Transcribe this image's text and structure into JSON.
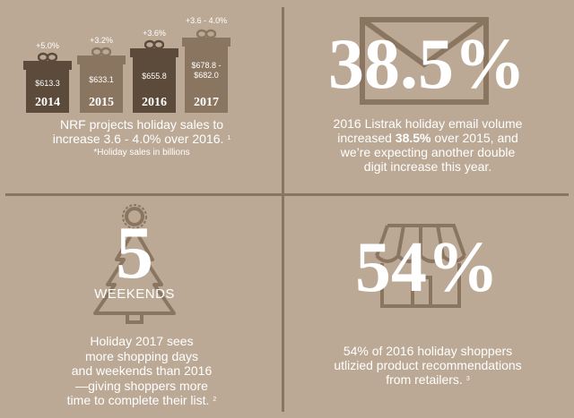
{
  "colors": {
    "background": "#bba995",
    "dark_box": "#5c4a3a",
    "mid_box": "#8a7560",
    "outline": "#8a7560",
    "text": "#ffffff"
  },
  "sales": {
    "items": [
      {
        "change": "+5.0%",
        "value": "$613.3",
        "year": "2014"
      },
      {
        "change": "+3.2%",
        "value": "$633.1",
        "year": "2015"
      },
      {
        "change": "+3.6%",
        "value": "$655.8",
        "year": "2016"
      },
      {
        "change": "+3.6 - 4.0%",
        "value": "$678.8 -\n$682.0",
        "year": "2017"
      }
    ],
    "caption_line1": "NRF projects holiday sales to",
    "caption_line2": "increase 3.6 - 4.0% over 2016.",
    "footnote": "1",
    "sub_caption": "*Holiday sales in billions"
  },
  "email": {
    "stat": "38.5%",
    "line1": "2016 Listrak holiday email volume",
    "line2_pre": "increased ",
    "line2_bold": "38.5%",
    "line2_post": " over 2015, and",
    "line3": "we’re expecting another double",
    "line4": "digit increase this year."
  },
  "weekends": {
    "stat": "5",
    "label": "WEEKENDS",
    "line1": "Holiday 2017 sees",
    "line2": "more shopping days",
    "line3": "and weekends than 2016",
    "line4": "—giving shoppers more",
    "line5": "time to complete their list.",
    "footnote": "2"
  },
  "recommend": {
    "stat": "54%",
    "line1": "54% of 2016 holiday shoppers",
    "line2": "utlizied product recommendations",
    "line3": "from retailers.",
    "footnote": "3"
  }
}
